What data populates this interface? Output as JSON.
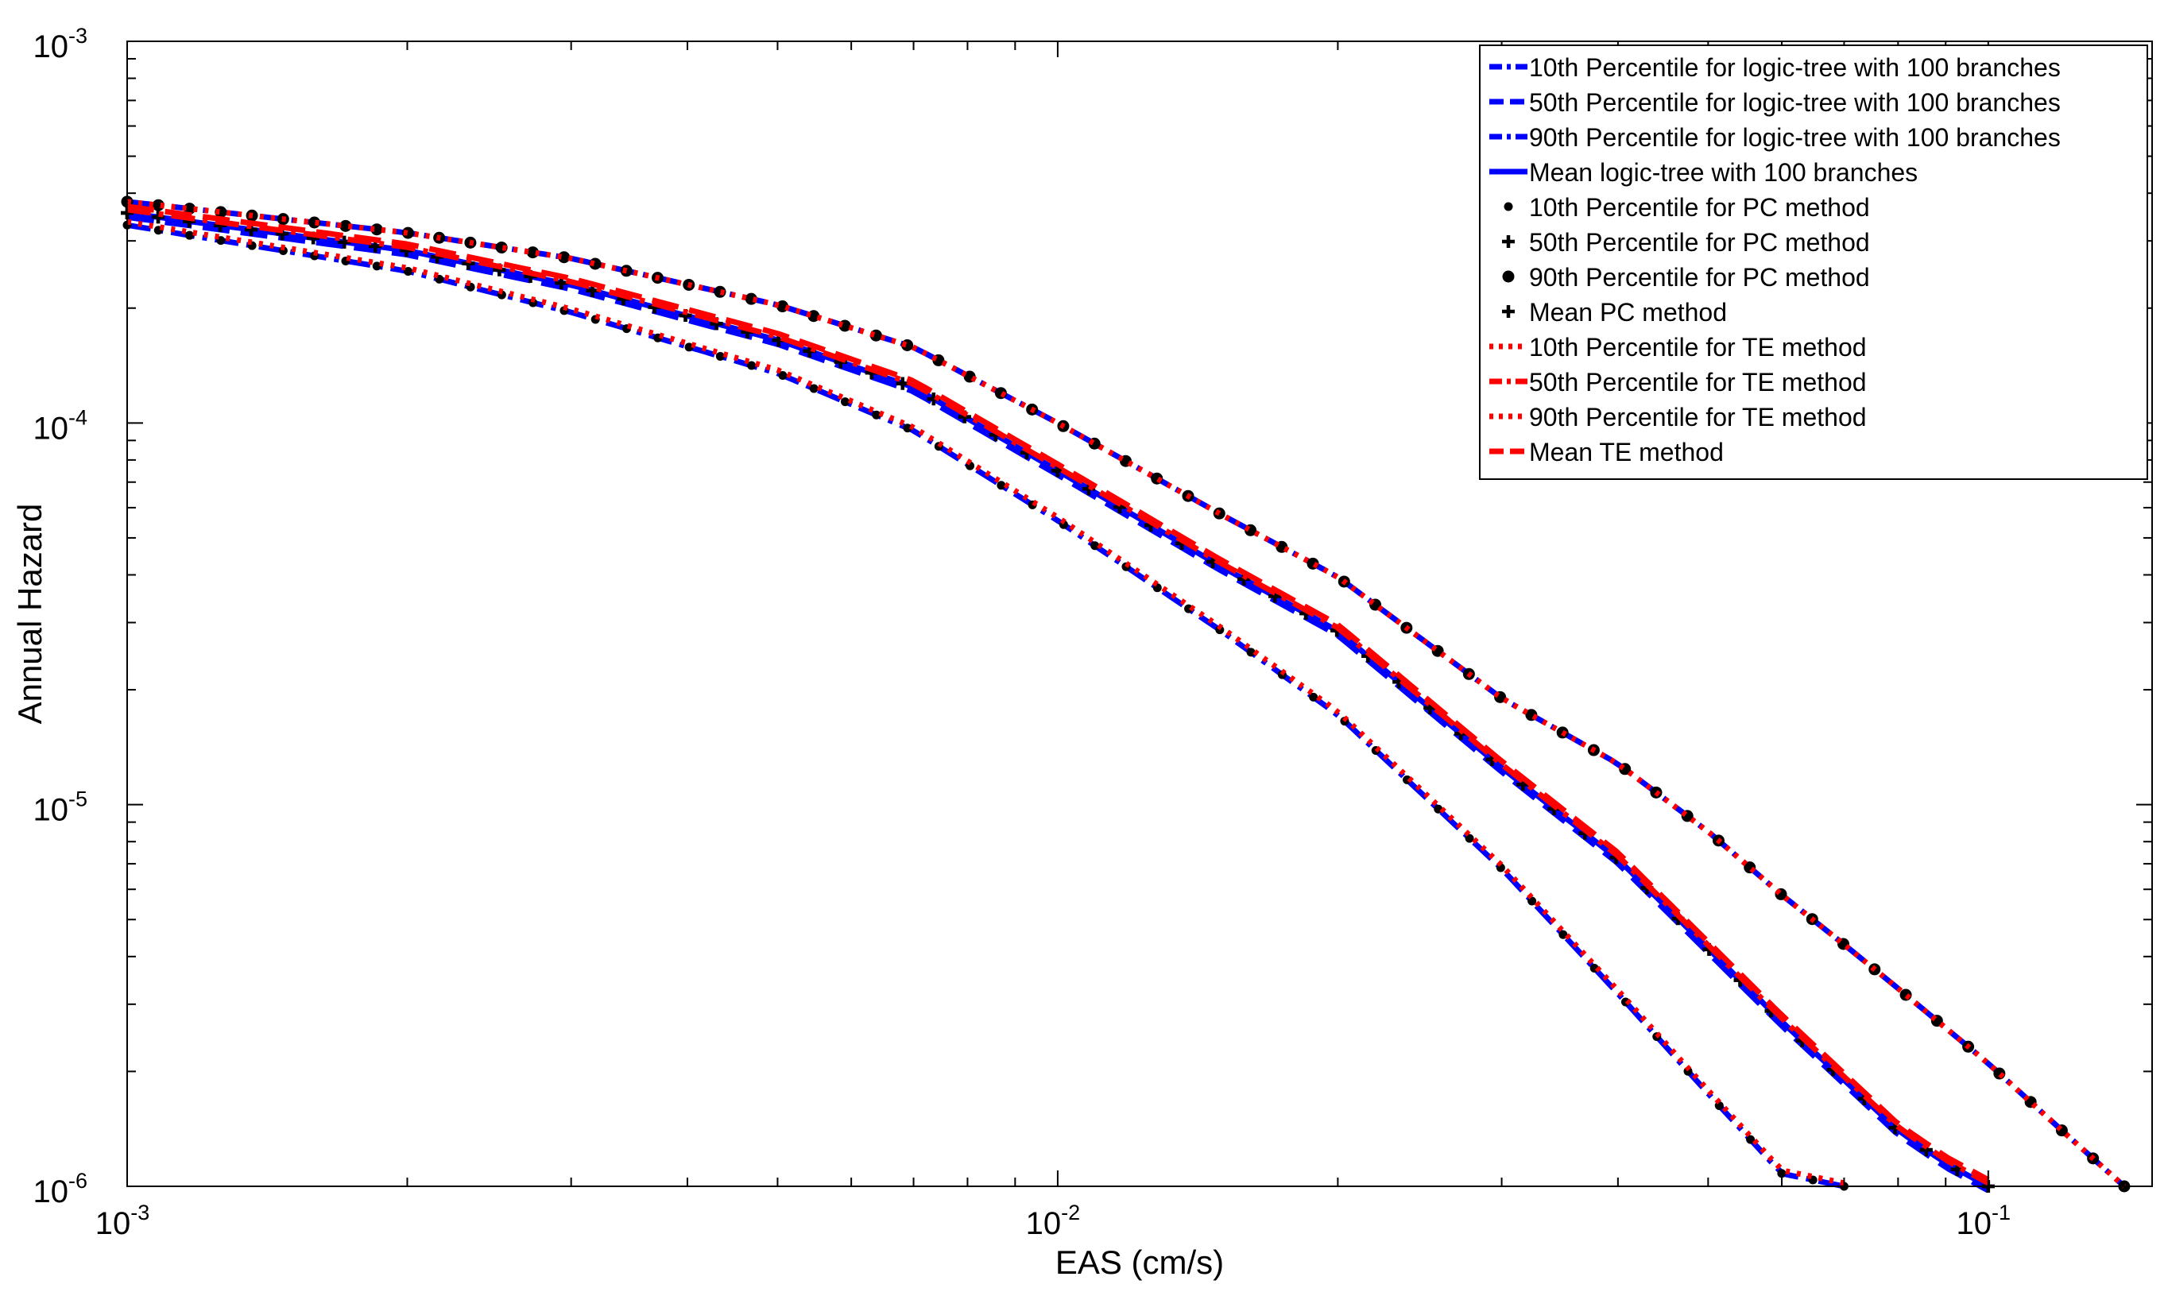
{
  "chart_data": {
    "type": "line",
    "xlabel": "EAS (cm/s)",
    "ylabel": "Annual Hazard",
    "xscale": "log",
    "yscale": "log",
    "xlim": [
      0.001,
      0.15
    ],
    "ylim": [
      1e-06,
      0.001
    ],
    "grid": false,
    "legend_position": "top-right",
    "x_ticks": [
      {
        "base": "10",
        "exp": "-3"
      },
      {
        "base": "10",
        "exp": "-2"
      },
      {
        "base": "10",
        "exp": "-1"
      }
    ],
    "y_ticks": [
      {
        "base": "10",
        "exp": "-3"
      },
      {
        "base": "10",
        "exp": "-4"
      },
      {
        "base": "10",
        "exp": "-5"
      },
      {
        "base": "10",
        "exp": "-6"
      }
    ],
    "curves": {
      "p10": {
        "x": [
          0.001,
          0.002,
          0.003,
          0.005,
          0.007,
          0.01,
          0.015,
          0.02,
          0.03,
          0.04,
          0.05,
          0.06,
          0.07
        ],
        "y": [
          0.00033,
          0.00025,
          0.000195,
          0.000135,
          9.55e-05,
          5.55e-05,
          2.85e-05,
          1.72e-05,
          6.8e-06,
          3.2e-06,
          1.75e-06,
          1.08e-06,
          1e-06
        ]
      },
      "p50": {
        "x": [
          0.001,
          0.002,
          0.003,
          0.005,
          0.007,
          0.01,
          0.015,
          0.02,
          0.03,
          0.04,
          0.05,
          0.06,
          0.07,
          0.08,
          0.09,
          0.1
        ],
        "y": [
          0.000355,
          0.000283,
          0.00023,
          0.000165,
          0.000124,
          7.5e-05,
          4.2e-05,
          2.85e-05,
          1.25e-05,
          7.2e-06,
          4.2e-06,
          2.7e-06,
          1.9e-06,
          1.4e-06,
          1.15e-06,
          1e-06
        ]
      },
      "p90": {
        "x": [
          0.001,
          0.002,
          0.003,
          0.005,
          0.007,
          0.01,
          0.015,
          0.02,
          0.03,
          0.04,
          0.05,
          0.06,
          0.07,
          0.08,
          0.1,
          0.12,
          0.14
        ],
        "y": [
          0.00038,
          0.000315,
          0.00027,
          0.000204,
          0.000158,
          0.0001,
          5.75e-05,
          3.95e-05,
          1.9e-05,
          1.28e-05,
          8.5e-06,
          5.8e-06,
          4.3e-06,
          3.3e-06,
          2.1e-06,
          1.4e-06,
          1e-06
        ]
      }
    },
    "series": [
      {
        "name": "10th Percentile for logic-tree with 100 branches",
        "curve": "p10",
        "color": "#0000ff",
        "dash": "dashdot",
        "marker": "none"
      },
      {
        "name": "50th Percentile for logic-tree with 100 branches",
        "curve": "p50",
        "color": "#0000ff",
        "dash": "dash",
        "marker": "none",
        "yscale": 0.975
      },
      {
        "name": "90th Percentile for logic-tree with 100 branches",
        "curve": "p90",
        "color": "#0000ff",
        "dash": "dashdot",
        "marker": "none"
      },
      {
        "name": "Mean logic-tree with 100 branches",
        "curve": "p50",
        "color": "#0000ff",
        "dash": "solid",
        "marker": "none"
      },
      {
        "name": "10th Percentile for PC method",
        "curve": "p10",
        "color": "#000000",
        "dash": "none",
        "marker": "dot"
      },
      {
        "name": "50th Percentile for PC method",
        "curve": "p50",
        "color": "#000000",
        "dash": "none",
        "marker": "plus"
      },
      {
        "name": "90th Percentile for PC method",
        "curve": "p90",
        "color": "#000000",
        "dash": "none",
        "marker": "hex"
      },
      {
        "name": "Mean PC method",
        "curve": "p50",
        "color": "#000000",
        "dash": "none",
        "marker": "plus"
      },
      {
        "name": "10th Percentile for TE method",
        "curve": "p10",
        "color": "#ff0000",
        "dash": "dot",
        "marker": "none",
        "yscale": 1.02
      },
      {
        "name": "50th Percentile for TE method",
        "curve": "p50",
        "color": "#ff0000",
        "dash": "dashdot",
        "marker": "none",
        "yscale": 1.02
      },
      {
        "name": "90th Percentile for TE method",
        "curve": "p90",
        "color": "#ff0000",
        "dash": "dot",
        "marker": "none"
      },
      {
        "name": "Mean TE method",
        "curve": "p50",
        "color": "#ff0000",
        "dash": "dash",
        "marker": "none",
        "yscale": 1.04
      }
    ]
  }
}
